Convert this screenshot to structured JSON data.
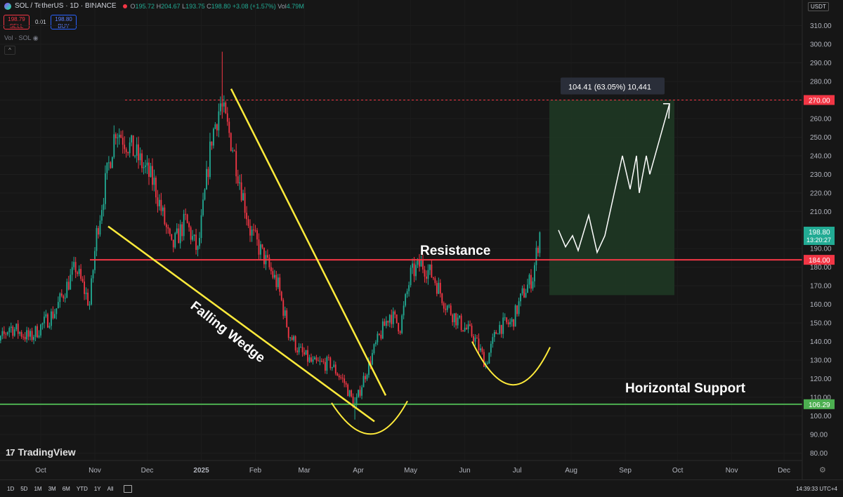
{
  "header": {
    "symbol": "SOL / TetherUS · 1D · BINANCE",
    "o_label": "O",
    "o": "195.72",
    "h_label": "H",
    "h": "204.67",
    "l_label": "L",
    "l": "193.75",
    "c_label": "C",
    "c": "198.80",
    "change": "+3.08 (+1.57%)",
    "vol_label": "Vol",
    "vol": "4.79M"
  },
  "trade": {
    "sell_price": "198.79",
    "sell_label": "SELL",
    "spread": "0.01",
    "buy_price": "198.80",
    "buy_label": "BUY"
  },
  "volume_label": "Vol · SOL",
  "currency": "USDT",
  "brand": "TradingView",
  "timeframes": [
    "1D",
    "5D",
    "1M",
    "3M",
    "6M",
    "YTD",
    "1Y",
    "All"
  ],
  "clock": "14:39:33 UTC+4",
  "colors": {
    "bull": "#22ab94",
    "bear": "#f23645",
    "resistance": "#f23645",
    "support": "#4caf50",
    "wedge": "#ffeb3b",
    "target_box": "#1e3a24"
  },
  "chart_data": {
    "type": "candlestick",
    "y_axis_ticks": [
      80,
      90,
      100,
      110,
      120,
      130,
      140,
      150,
      160,
      170,
      180,
      190,
      200,
      210,
      220,
      230,
      240,
      250,
      260,
      270,
      280,
      290,
      300,
      310
    ],
    "y_tick_labels": [
      "80.00",
      "90.00",
      "100.00",
      "110.00",
      "120.00",
      "130.00",
      "140.00",
      "150.00",
      "160.00",
      "170.00",
      "180.00",
      "190.00",
      "200.00",
      "210.00",
      "220.00",
      "230.00",
      "240.00",
      "250.00",
      "260.00",
      "270.00",
      "280.00",
      "290.00",
      "300.00",
      "310.00"
    ],
    "ylim": [
      76,
      314
    ],
    "x_axis_labels": [
      "Oct",
      "Nov",
      "Dec",
      "2025",
      "Feb",
      "Mar",
      "Apr",
      "May",
      "Jun",
      "Jul",
      "Aug",
      "Sep",
      "Oct",
      "Nov",
      "Dec"
    ],
    "x_label_days": [
      30,
      61,
      91,
      122,
      153,
      181,
      212,
      242,
      273,
      303,
      334,
      365,
      395,
      426,
      456
    ],
    "bold_x_labels": [
      "2025"
    ],
    "price_path": [
      {
        "d": 0,
        "p": 130
      },
      {
        "d": 12,
        "p": 148
      },
      {
        "d": 24,
        "p": 142
      },
      {
        "d": 38,
        "p": 156
      },
      {
        "d": 50,
        "p": 180
      },
      {
        "d": 58,
        "p": 160
      },
      {
        "d": 62,
        "p": 198
      },
      {
        "d": 67,
        "p": 225
      },
      {
        "d": 73,
        "p": 255
      },
      {
        "d": 85,
        "p": 240
      },
      {
        "d": 95,
        "p": 225
      },
      {
        "d": 105,
        "p": 190
      },
      {
        "d": 113,
        "p": 205
      },
      {
        "d": 120,
        "p": 188
      },
      {
        "d": 128,
        "p": 250
      },
      {
        "d": 133,
        "p": 268
      },
      {
        "d": 140,
        "p": 245
      },
      {
        "d": 150,
        "p": 200
      },
      {
        "d": 158,
        "p": 185
      },
      {
        "d": 166,
        "p": 170
      },
      {
        "d": 172,
        "p": 145
      },
      {
        "d": 178,
        "p": 135
      },
      {
        "d": 186,
        "p": 128
      },
      {
        "d": 196,
        "p": 128
      },
      {
        "d": 204,
        "p": 118
      },
      {
        "d": 210,
        "p": 105
      },
      {
        "d": 215,
        "p": 120
      },
      {
        "d": 222,
        "p": 138
      },
      {
        "d": 230,
        "p": 155
      },
      {
        "d": 236,
        "p": 148
      },
      {
        "d": 242,
        "p": 176
      },
      {
        "d": 248,
        "p": 182
      },
      {
        "d": 255,
        "p": 175
      },
      {
        "d": 262,
        "p": 160
      },
      {
        "d": 270,
        "p": 150
      },
      {
        "d": 278,
        "p": 143
      },
      {
        "d": 285,
        "p": 128
      },
      {
        "d": 292,
        "p": 148
      },
      {
        "d": 300,
        "p": 150
      },
      {
        "d": 306,
        "p": 165
      },
      {
        "d": 312,
        "p": 175
      },
      {
        "d": 316,
        "p": 198.8
      }
    ],
    "resistance": 184.0,
    "support": 106.29,
    "target": 270.0,
    "price_labels": [
      {
        "value": 270.0,
        "text": "270.00",
        "color": "#f23645"
      },
      {
        "value": 184.0,
        "text": "184.00",
        "color": "#f23645"
      },
      {
        "value": 106.29,
        "text": "106.29",
        "color": "#4caf50"
      }
    ],
    "last_price": {
      "value": 198.8,
      "text": "198.80",
      "countdown": "13:20:27",
      "color": "#22ab94"
    },
    "projection_label": "104.41 (63.05%) 10,441",
    "annotations": {
      "resistance": "Resistance",
      "support": "Horizontal Support",
      "wedge": "Falling Wedge"
    }
  }
}
